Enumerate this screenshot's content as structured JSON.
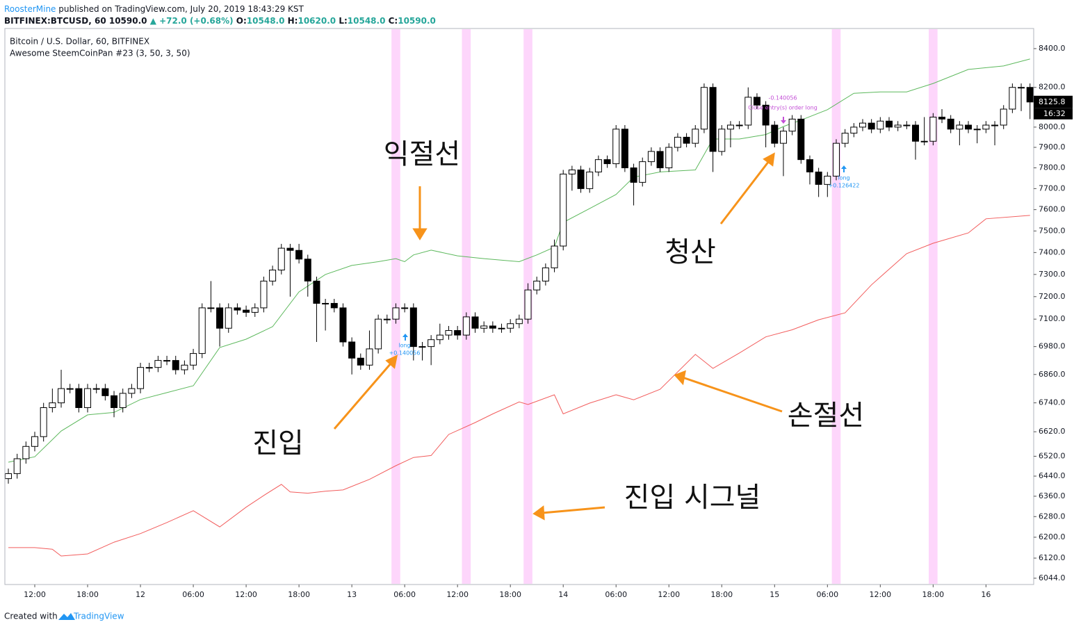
{
  "header": {
    "author": "RoosterMine",
    "published": "published on TradingView.com, July 20, 2019 18:43:29 KST",
    "symbol": "BITFINEX:BTCUSD, 60",
    "last": "10590.0",
    "change": "▲ +72.0 (+0.68%)",
    "o_label": "O:",
    "o": "10548.0",
    "h_label": "H:",
    "h": "10620.0",
    "l_label": "L:",
    "l": "10548.0",
    "c_label": "C:",
    "c": "10590.0",
    "legend_symbol": "Bitcoin / U.S. Dollar, 60, BITFINEX",
    "legend_indicator": "Awesome SteemCoinPan #23 (3, 50, 3, 50)",
    "countdown": "16:32"
  },
  "annotations": {
    "take_profit": "익절선",
    "exit": "청산",
    "entry": "진입",
    "stop_loss": "손절선",
    "signal": "진입 시그널",
    "trade1_side": "long",
    "trade1_pnl": "+0.140056",
    "close_pnl": "-0.140056",
    "close_text": "Close entry(s) order long",
    "trade2_side": "long",
    "trade2_pnl": "+0.126422"
  },
  "footer": {
    "created": "Created with",
    "brand": "TradingView"
  },
  "chart_data": {
    "type": "candlestick",
    "log_scale": true,
    "up_color": "#ffffff",
    "down_color": "#000000",
    "band_color": "#fdd6fb",
    "open": [
      6430,
      6450,
      6510,
      6560,
      6600,
      6720,
      6740,
      6800,
      6800,
      6720,
      6800,
      6800,
      6770,
      6720,
      6780,
      6800,
      6890,
      6890,
      6920,
      6920,
      6880,
      6900,
      6950,
      7150,
      7150,
      7060,
      7150,
      7140,
      7130,
      7150,
      7270,
      7320,
      7420,
      7410,
      7370,
      7270,
      7170,
      7170,
      7150,
      7000,
      6930,
      6900,
      6970,
      7100,
      7100,
      7150,
      7150,
      6980,
      6980,
      7010,
      7030,
      7050,
      7030,
      7110,
      7060,
      7070,
      7060,
      7060,
      7080,
      7100,
      7230,
      7270,
      7330,
      7430,
      7770,
      7790,
      7700,
      7780,
      7840,
      7820,
      7990,
      7800,
      7730,
      7830,
      7880,
      7800,
      7900,
      7950,
      7920,
      7990,
      8200,
      7880,
      7990,
      8010,
      8010,
      8150,
      8110,
      8010,
      7920,
      7980,
      8040,
      7840,
      7780,
      7720,
      7760,
      7920,
      7970,
      8000,
      8020,
      7990,
      8030,
      8000,
      8010,
      8010,
      7930,
      7930,
      8050,
      8040,
      7990,
      8010,
      7990,
      7990,
      8010,
      8010,
      8090,
      8200,
      8200
    ],
    "close": [
      6450,
      6510,
      6560,
      6600,
      6720,
      6740,
      6800,
      6800,
      6720,
      6800,
      6800,
      6770,
      6720,
      6780,
      6800,
      6890,
      6890,
      6920,
      6920,
      6880,
      6900,
      6950,
      7150,
      7150,
      7060,
      7150,
      7140,
      7130,
      7150,
      7270,
      7320,
      7420,
      7410,
      7370,
      7270,
      7170,
      7170,
      7150,
      7000,
      6930,
      6900,
      6970,
      7100,
      7100,
      7150,
      7150,
      6980,
      6980,
      7010,
      7030,
      7050,
      7030,
      7110,
      7060,
      7070,
      7060,
      7060,
      7080,
      7100,
      7230,
      7270,
      7330,
      7430,
      7770,
      7790,
      7700,
      7780,
      7840,
      7820,
      7990,
      7800,
      7730,
      7830,
      7880,
      7800,
      7900,
      7950,
      7920,
      7990,
      8200,
      7880,
      7990,
      8010,
      8010,
      8150,
      8110,
      8010,
      7920,
      7980,
      8040,
      7840,
      7780,
      7720,
      7760,
      7920,
      7970,
      8000,
      8020,
      7990,
      8030,
      8000,
      8010,
      8010,
      7930,
      7930,
      8050,
      8040,
      7990,
      8010,
      7990,
      7990,
      8010,
      8010,
      8090,
      8200,
      8200,
      8125.8
    ],
    "high": [
      6470,
      6530,
      6580,
      6620,
      6740,
      6800,
      6880,
      6820,
      6820,
      6820,
      6820,
      6820,
      6790,
      6800,
      6820,
      6910,
      6910,
      6940,
      6940,
      6940,
      6920,
      6970,
      7170,
      7270,
      7170,
      7170,
      7170,
      7160,
      7170,
      7290,
      7340,
      7440,
      7440,
      7440,
      7390,
      7290,
      7190,
      7190,
      7170,
      7020,
      6950,
      7050,
      7120,
      7120,
      7170,
      7170,
      7170,
      7000,
      7030,
      7080,
      7070,
      7070,
      7130,
      7130,
      7090,
      7090,
      7080,
      7100,
      7120,
      7260,
      7290,
      7350,
      7460,
      7790,
      7810,
      7810,
      7800,
      7860,
      7860,
      8010,
      8010,
      7820,
      7850,
      7900,
      7900,
      7920,
      7970,
      7970,
      8010,
      8220,
      8220,
      8010,
      8030,
      8030,
      8200,
      8170,
      8130,
      8030,
      8000,
      8060,
      8060,
      7860,
      7800,
      7780,
      7940,
      7990,
      8020,
      8040,
      8040,
      8050,
      8050,
      8030,
      8030,
      8030,
      8050,
      8070,
      8090,
      8060,
      8030,
      8030,
      8010,
      8030,
      8030,
      8110,
      8220,
      8220,
      8220
    ],
    "low": [
      6410,
      6430,
      6490,
      6540,
      6580,
      6700,
      6720,
      6780,
      6700,
      6700,
      6780,
      6750,
      6680,
      6700,
      6760,
      6780,
      6870,
      6870,
      6900,
      6860,
      6860,
      6880,
      6930,
      7130,
      6980,
      7040,
      7120,
      7110,
      7110,
      7130,
      7250,
      7300,
      7200,
      7350,
      7200,
      7000,
      7050,
      7130,
      6980,
      6860,
      6880,
      6880,
      6950,
      7080,
      7080,
      7130,
      6920,
      6920,
      6900,
      6990,
      7010,
      7010,
      7010,
      7040,
      7040,
      7040,
      7040,
      7040,
      7060,
      7080,
      7210,
      7250,
      7310,
      7410,
      7690,
      7680,
      7680,
      7760,
      7800,
      7800,
      7780,
      7620,
      7710,
      7810,
      7780,
      7780,
      7880,
      7900,
      7900,
      7970,
      7780,
      7860,
      7900,
      7990,
      7990,
      8090,
      7900,
      7900,
      7760,
      7960,
      7820,
      7720,
      7660,
      7660,
      7740,
      7900,
      7950,
      7980,
      7970,
      7970,
      7980,
      7980,
      7990,
      7840,
      7910,
      7910,
      8020,
      7970,
      7910,
      7970,
      7920,
      7970,
      7910,
      7990,
      8070,
      8080,
      8040
    ],
    "series": [
      {
        "color": "#5cb85c",
        "x": [
          0,
          3,
          6,
          9,
          12,
          15,
          18,
          21,
          24,
          27,
          30,
          33,
          36,
          39,
          42,
          44,
          45,
          46,
          48,
          51,
          54,
          58,
          60,
          62,
          63,
          66,
          69,
          71,
          74,
          78,
          80,
          83,
          86,
          88,
          90,
          93,
          96,
          99,
          102,
          105,
          109,
          113,
          116
        ],
        "values": [
          6496,
          6518,
          6623,
          6690,
          6700,
          6754,
          6783,
          6812,
          6976,
          7012,
          7067,
          7221,
          7300,
          7341,
          7358,
          7372,
          7358,
          7389,
          7411,
          7385,
          7372,
          7358,
          7389,
          7425,
          7540,
          7605,
          7672,
          7755,
          7780,
          7790,
          7941,
          7941,
          7963,
          8003,
          8035,
          8087,
          8170,
          8177,
          8177,
          8220,
          8292,
          8310,
          8346
        ]
      },
      {
        "color": "#f25c5c",
        "x": [
          0,
          3,
          5,
          6,
          9,
          12,
          15,
          18,
          21,
          24,
          27,
          29,
          31,
          32,
          34,
          36,
          38,
          41,
          44,
          46,
          48,
          50,
          53,
          55,
          58,
          59,
          62,
          63,
          66,
          69,
          71,
          74,
          78,
          80,
          83,
          86,
          89,
          92,
          95,
          98,
          102,
          105,
          109,
          111,
          116
        ],
        "values": [
          6160,
          6160,
          6154,
          6128,
          6136,
          6181,
          6214,
          6257,
          6303,
          6240,
          6317,
          6363,
          6407,
          6377,
          6372,
          6380,
          6385,
          6427,
          6482,
          6515,
          6523,
          6609,
          6658,
          6694,
          6744,
          6733,
          6774,
          6694,
          6739,
          6774,
          6753,
          6797,
          6946,
          6886,
          6952,
          7022,
          7053,
          7097,
          7128,
          7253,
          7395,
          7443,
          7491,
          7557,
          7573
        ]
      }
    ],
    "signals": [
      44,
      52,
      59,
      94,
      105
    ],
    "ylim": [
      6023,
      8502
    ],
    "yticks": [
      {
        "value": 8400,
        "label": "8400.0"
      },
      {
        "value": 8200,
        "label": "8200.0"
      },
      {
        "value": 8000,
        "label": "8000.0"
      },
      {
        "value": 7900,
        "label": "7900.0"
      },
      {
        "value": 7800,
        "label": "7800.0"
      },
      {
        "value": 7700,
        "label": "7700.0"
      },
      {
        "value": 7600,
        "label": "7600.0"
      },
      {
        "value": 7500,
        "label": "7500.0"
      },
      {
        "value": 7400,
        "label": "7400.0"
      },
      {
        "value": 7300,
        "label": "7300.0"
      },
      {
        "value": 7200,
        "label": "7200.0"
      },
      {
        "value": 7100,
        "label": "7100.0"
      },
      {
        "value": 6980,
        "label": "6980.0"
      },
      {
        "value": 6860,
        "label": "6860.0"
      },
      {
        "value": 6740,
        "label": "6740.0"
      },
      {
        "value": 6620,
        "label": "6620.0"
      },
      {
        "value": 6520,
        "label": "6520.0"
      },
      {
        "value": 6440,
        "label": "6440.0"
      },
      {
        "value": 6360,
        "label": "6360.0"
      },
      {
        "value": 6280,
        "label": "6280.0"
      },
      {
        "value": 6200,
        "label": "6200.0"
      },
      {
        "value": 6120,
        "label": "6120.0"
      },
      {
        "value": 6044,
        "label": "6044.0"
      }
    ],
    "xticks": [
      {
        "value": 3,
        "label": "12:00"
      },
      {
        "value": 9,
        "label": "18:00"
      },
      {
        "value": 15,
        "label": "12"
      },
      {
        "value": 21,
        "label": "06:00"
      },
      {
        "value": 27,
        "label": "12:00"
      },
      {
        "value": 33,
        "label": "18:00"
      },
      {
        "value": 39,
        "label": "13"
      },
      {
        "value": 45,
        "label": "06:00"
      },
      {
        "value": 51,
        "label": "12:00"
      },
      {
        "value": 57,
        "label": "18:00"
      },
      {
        "value": 63,
        "label": "14"
      },
      {
        "value": 69,
        "label": "06:00"
      },
      {
        "value": 75,
        "label": "12:00"
      },
      {
        "value": 81,
        "label": "18:00"
      },
      {
        "value": 87,
        "label": "15"
      },
      {
        "value": 93,
        "label": "06:00"
      },
      {
        "value": 99,
        "label": "12:00"
      },
      {
        "value": 105,
        "label": "18:00"
      },
      {
        "value": 111,
        "label": "16"
      }
    ]
  }
}
